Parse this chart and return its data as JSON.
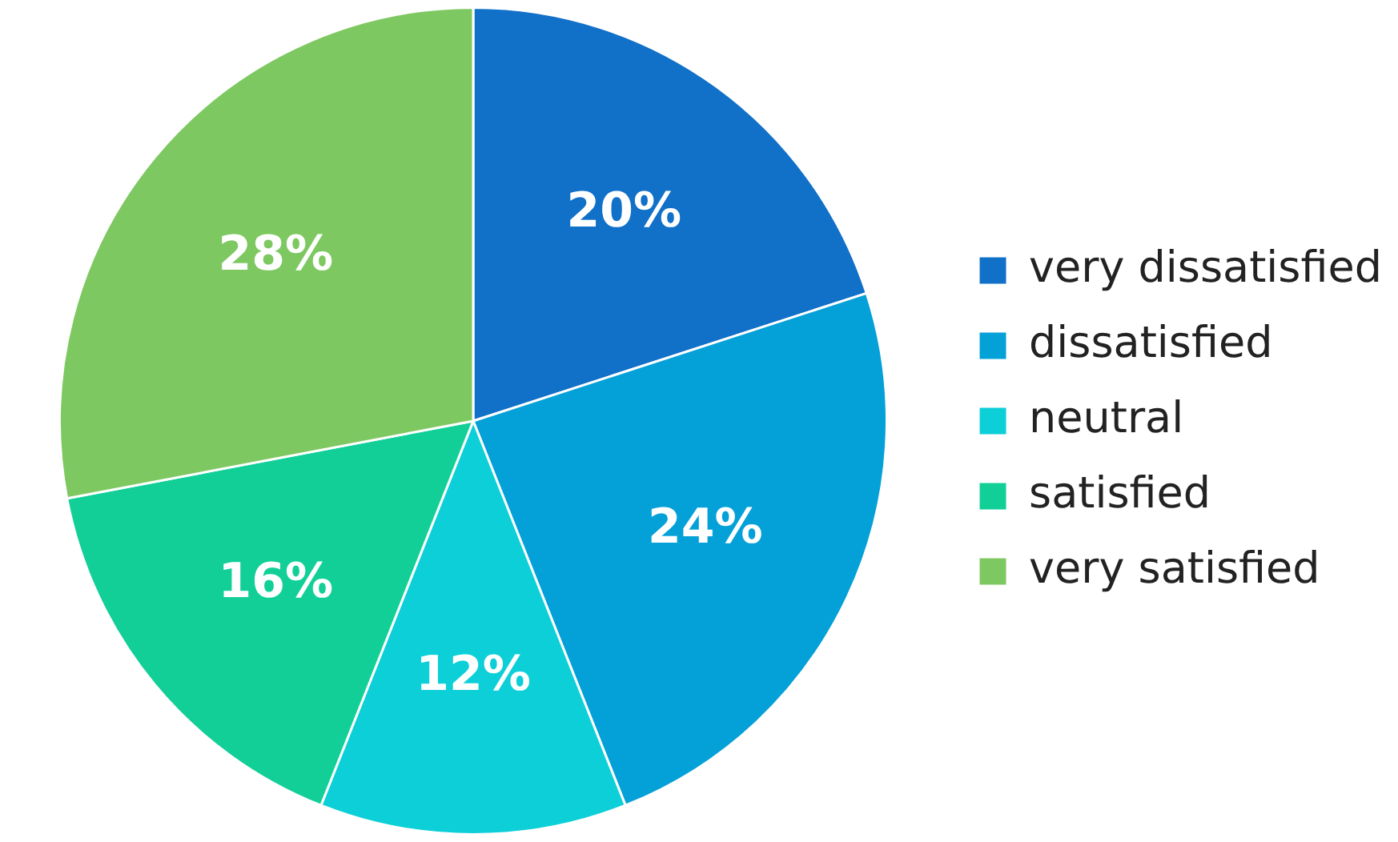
{
  "chart_data": {
    "type": "pie",
    "categories": [
      "very dissatisfied",
      "dissatisfied",
      "neutral",
      "satisfied",
      "very satisfied"
    ],
    "values": [
      20,
      24,
      12,
      16,
      28
    ],
    "colors": [
      "#1170c8",
      "#04a0d8",
      "#0ccfd8",
      "#12cf98",
      "#7ec862"
    ],
    "value_labels": [
      "20%",
      "24%",
      "12%",
      "16%",
      "28%"
    ],
    "legend": "right"
  }
}
